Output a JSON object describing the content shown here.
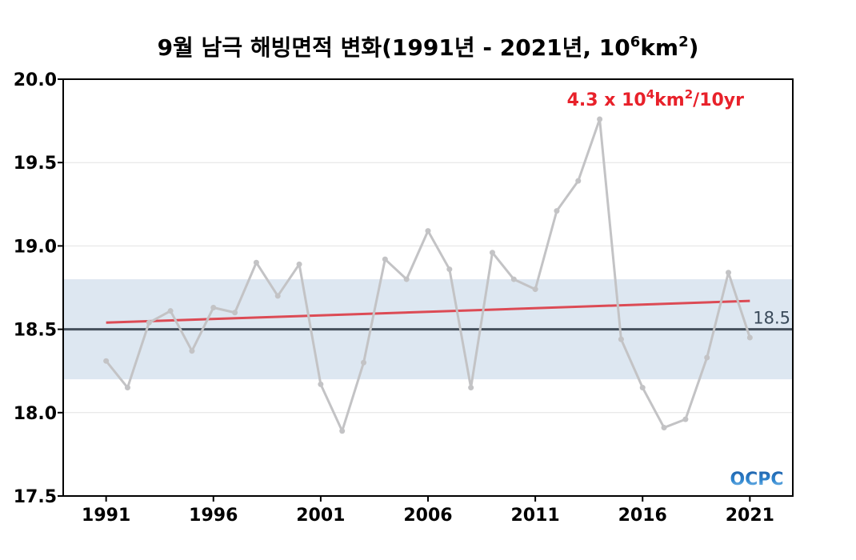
{
  "chart_data": {
    "type": "line",
    "title_main": "9월 남극 해빙면적 변화(1991년 - 2021년, 10",
    "title_sup1": "6",
    "title_mid": "km",
    "title_sup2": "2",
    "title_end": ")",
    "x": [
      1991,
      1992,
      1993,
      1994,
      1995,
      1996,
      1997,
      1998,
      1999,
      2000,
      2001,
      2002,
      2003,
      2004,
      2005,
      2006,
      2007,
      2008,
      2009,
      2010,
      2011,
      2012,
      2013,
      2014,
      2015,
      2016,
      2017,
      2018,
      2019,
      2020,
      2021
    ],
    "values": [
      18.31,
      18.15,
      18.54,
      18.61,
      18.37,
      18.63,
      18.6,
      18.9,
      18.7,
      18.89,
      18.17,
      17.89,
      18.3,
      18.92,
      18.8,
      19.09,
      18.86,
      18.15,
      18.96,
      18.8,
      18.74,
      19.21,
      19.39,
      19.76,
      18.44,
      18.15,
      17.91,
      17.96,
      18.33,
      18.84,
      18.45
    ],
    "xlim": [
      1989,
      2023
    ],
    "ylim": [
      17.5,
      20.0
    ],
    "x_ticks": [
      "1991",
      "1996",
      "2001",
      "2006",
      "2011",
      "2016",
      "2021"
    ],
    "y_ticks": [
      "17.5",
      "18.0",
      "18.5",
      "19.0",
      "19.5",
      "20.0"
    ],
    "reference_line": {
      "value": 18.5,
      "label": "18.5",
      "band": [
        18.2,
        18.8
      ]
    },
    "trend": {
      "start": 18.54,
      "end": 18.67,
      "label_main": "4.3 x 10",
      "label_sup1": "4",
      "label_mid": "km",
      "label_sup2": "2",
      "label_end": "/10yr"
    },
    "grid": true,
    "colors": {
      "series": "#c3c3c5",
      "trend": "#dc4b55",
      "reference": "#45505c",
      "band": "#dde7f1",
      "trend_label": "#e8212a"
    }
  },
  "logo": {
    "text": "OCPC"
  }
}
